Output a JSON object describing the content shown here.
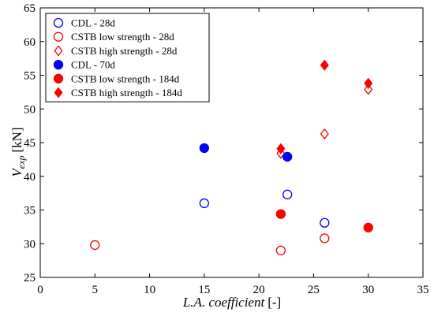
{
  "chart_data": {
    "type": "scatter",
    "title": "",
    "xlabel": "L.A. coefficient [-]",
    "xlabel_parts": {
      "main": "L.A. coefficient",
      "unit": "[-]"
    },
    "ylabel": "V_exp [kN]",
    "ylabel_parts": {
      "main": "V",
      "sub": "exp",
      "unit": "[kN]"
    },
    "xlim": [
      0,
      35
    ],
    "ylim": [
      25,
      65
    ],
    "xticks": [
      0,
      5,
      10,
      15,
      20,
      25,
      30,
      35
    ],
    "yticks": [
      25,
      30,
      35,
      40,
      45,
      50,
      55,
      60,
      65
    ],
    "grid": false,
    "legend_position": "top-left",
    "series": [
      {
        "name": "CDL - 28d",
        "marker": "circle",
        "filled": false,
        "color": "#0000ff",
        "points": [
          [
            15,
            36.0
          ],
          [
            22.6,
            37.3
          ],
          [
            26,
            33.1
          ]
        ]
      },
      {
        "name": "CSTB low strength - 28d",
        "marker": "circle",
        "filled": false,
        "color": "#ff0000",
        "points": [
          [
            5,
            29.8
          ],
          [
            22,
            29.0
          ],
          [
            26,
            30.8
          ]
        ]
      },
      {
        "name": "CSTB high strength - 28d",
        "marker": "diamond",
        "filled": false,
        "color": "#ff0000",
        "points": [
          [
            22,
            43.4
          ],
          [
            26,
            46.3
          ],
          [
            30,
            52.9
          ]
        ]
      },
      {
        "name": "CDL - 70d",
        "marker": "circle",
        "filled": true,
        "color": "#0000ff",
        "points": [
          [
            15,
            44.2
          ],
          [
            22.6,
            42.9
          ]
        ]
      },
      {
        "name": "CSTB low strength - 184d",
        "marker": "circle",
        "filled": true,
        "color": "#ff0000",
        "points": [
          [
            22,
            34.4
          ],
          [
            30,
            32.4
          ]
        ]
      },
      {
        "name": "CSTB high strength - 184d",
        "marker": "diamond",
        "filled": true,
        "color": "#ff0000",
        "points": [
          [
            22,
            44.1
          ],
          [
            26,
            56.5
          ],
          [
            30,
            53.8
          ]
        ]
      }
    ]
  }
}
